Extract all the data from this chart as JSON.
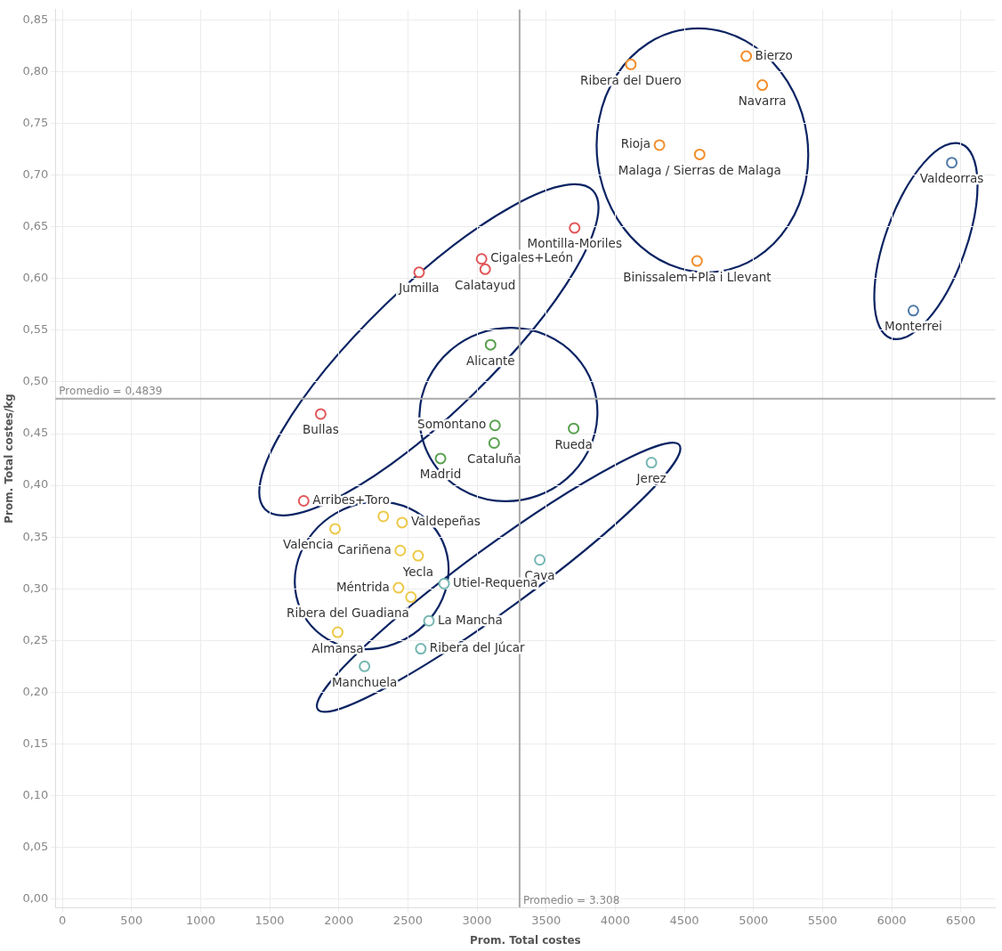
{
  "chart_data": {
    "type": "scatter",
    "xlabel": "Prom. Total costes",
    "ylabel": "Prom. Total costes/kg",
    "marker": "circle",
    "grid": true,
    "xlim": [
      -50,
      6750
    ],
    "xticks": [
      0,
      500,
      1000,
      1500,
      2000,
      2500,
      3000,
      3500,
      4000,
      4500,
      5000,
      5500,
      6000,
      6500
    ],
    "ylim": [
      -0.008,
      0.86
    ],
    "yticks": [
      {
        "value": 0,
        "label": "0,00"
      },
      {
        "value": 0.05,
        "label": "0,05"
      },
      {
        "value": 0.1,
        "label": "0,10"
      },
      {
        "value": 0.15,
        "label": "0,15"
      },
      {
        "value": 0.2,
        "label": "0,20"
      },
      {
        "value": 0.25,
        "label": "0,25"
      },
      {
        "value": 0.3,
        "label": "0,30"
      },
      {
        "value": 0.35,
        "label": "0,35"
      },
      {
        "value": 0.4,
        "label": "0,40"
      },
      {
        "value": 0.45,
        "label": "0,45"
      },
      {
        "value": 0.5,
        "label": "0,50"
      },
      {
        "value": 0.55,
        "label": "0,55"
      },
      {
        "value": 0.6,
        "label": "0,60"
      },
      {
        "value": 0.65,
        "label": "0,65"
      },
      {
        "value": 0.7,
        "label": "0,70"
      },
      {
        "value": 0.75,
        "label": "0,75"
      },
      {
        "value": 0.8,
        "label": "0,80"
      },
      {
        "value": 0.85,
        "label": "0,85"
      }
    ],
    "ref_lines": [
      {
        "axis": "y",
        "value": 0.4839,
        "label": "Promedio = 0,4839",
        "color": "#aaaaaa"
      },
      {
        "axis": "x",
        "value": 3308,
        "label": "Promedio = 3.308",
        "color": "#aaaaaa"
      }
    ],
    "series": [
      {
        "color": "#f28e2b",
        "x": [
          4948,
          4113,
          5064,
          4320,
          4611,
          4592
        ],
        "values": [
          0.815,
          0.807,
          0.787,
          0.729,
          0.72,
          0.617
        ],
        "value_labels": [
          "Bierzo",
          "Ribera del Duero",
          "Navarra",
          "Rioja",
          "Malaga / Sierras de Malaga",
          "Binissalem+Pla i Llevant"
        ]
      },
      {
        "color": "#4e79a7",
        "x": [
          6435,
          6157
        ],
        "values": [
          0.712,
          0.569
        ],
        "value_labels": [
          "Valdeorras",
          "Monterrei"
        ]
      },
      {
        "color": "#e15759",
        "x": [
          3706,
          3033,
          3059,
          2581,
          1869,
          1746
        ],
        "values": [
          0.649,
          0.619,
          0.609,
          0.606,
          0.469,
          0.385
        ],
        "value_labels": [
          "Montilla-Moriles",
          "Cigales+León",
          "Calatayud",
          "Jumilla",
          "Bullas",
          "Arribes+Toro"
        ]
      },
      {
        "color": "#59a14f",
        "x": [
          3098,
          3130,
          3124,
          3699,
          2736
        ],
        "values": [
          0.536,
          0.458,
          0.441,
          0.455,
          0.426
        ],
        "value_labels": [
          "Alicante",
          "Somontano",
          "Cataluña",
          "Rueda",
          "Madrid"
        ]
      },
      {
        "color": "#76b7b2",
        "x": [
          4262,
          3454,
          2762,
          2652,
          2593,
          2186
        ],
        "values": [
          0.422,
          0.328,
          0.305,
          0.269,
          0.242,
          0.225
        ],
        "value_labels": [
          "Jerez",
          "Cava",
          "Utiel-Requena",
          "La Mancha",
          "Ribera del Júcar",
          "Manchuela"
        ]
      },
      {
        "color": "#edc948",
        "x": [
          2458,
          2322,
          1973,
          2445,
          2574,
          2432,
          2522,
          1992
        ],
        "values": [
          0.364,
          0.37,
          0.358,
          0.337,
          0.332,
          0.301,
          0.292,
          0.258
        ],
        "value_labels": [
          "Valdepeñas",
          null,
          "Valencia",
          "Cariñena",
          "Yecla",
          "Méntrida",
          "Ribera del Guadiana",
          "Almansa"
        ]
      }
    ]
  }
}
